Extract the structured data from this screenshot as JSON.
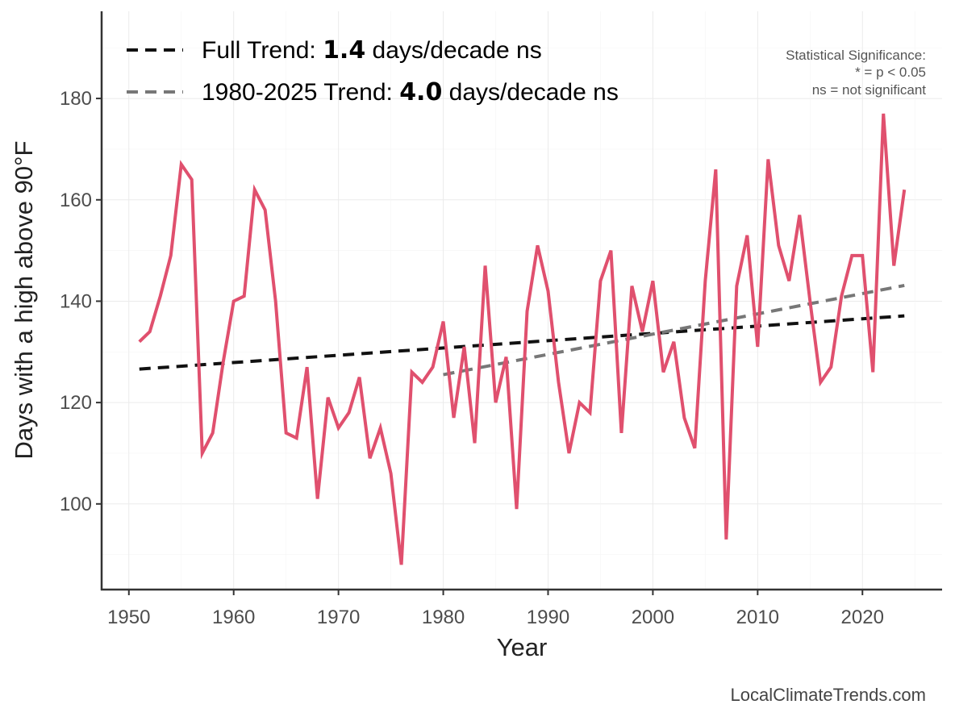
{
  "chart_data": {
    "type": "line",
    "title": "",
    "xlabel": "Year",
    "ylabel": "Days with a high above 90°F",
    "xlim": [
      1947.4,
      2027.6
    ],
    "ylim": [
      83.1,
      197.2
    ],
    "xticks": [
      1950,
      1960,
      1970,
      1980,
      1990,
      2000,
      2010,
      2020
    ],
    "yticks": [
      100,
      120,
      140,
      160,
      180
    ],
    "grid": true,
    "series": [
      {
        "name": "Days above 90°F",
        "color": "#e0506e",
        "x": [
          1951,
          1952,
          1953,
          1954,
          1955,
          1956,
          1957,
          1958,
          1959,
          1960,
          1961,
          1962,
          1963,
          1964,
          1965,
          1966,
          1967,
          1968,
          1969,
          1970,
          1971,
          1972,
          1973,
          1974,
          1975,
          1976,
          1977,
          1978,
          1979,
          1980,
          1981,
          1982,
          1983,
          1984,
          1985,
          1986,
          1987,
          1988,
          1989,
          1990,
          1991,
          1992,
          1993,
          1994,
          1995,
          1996,
          1997,
          1998,
          1999,
          2000,
          2001,
          2002,
          2003,
          2004,
          2005,
          2006,
          2007,
          2008,
          2009,
          2010,
          2011,
          2012,
          2013,
          2014,
          2015,
          2016,
          2017,
          2018,
          2019,
          2020,
          2021,
          2022,
          2023,
          2024
        ],
        "values": [
          132,
          134,
          141,
          149,
          167,
          164,
          110,
          114,
          128,
          140,
          141,
          162,
          158,
          140,
          114,
          113,
          127,
          101,
          121,
          115,
          118,
          125,
          109,
          115,
          106,
          88,
          126,
          124,
          127,
          136,
          117,
          131,
          112,
          147,
          120,
          129,
          99,
          138,
          151,
          142,
          124,
          110,
          120,
          118,
          144,
          150,
          114,
          143,
          134,
          144,
          126,
          132,
          117,
          111,
          144,
          166,
          93,
          143,
          153,
          131,
          168,
          151,
          144,
          157,
          140,
          124,
          127,
          141,
          149,
          149,
          126,
          177,
          147,
          162
        ]
      }
    ],
    "trends": [
      {
        "name": "Full Trend",
        "color": "#111111",
        "x": [
          1951,
          2024
        ],
        "values": [
          126.6,
          137.1
        ]
      },
      {
        "name": "1980-2025 Trend",
        "color": "#777777",
        "x": [
          1980,
          2024
        ],
        "values": [
          125.5,
          143.1
        ]
      }
    ],
    "legend": {
      "placement": "top-left",
      "entries": [
        {
          "prefix": "Full Trend: ",
          "value": "1.4",
          "suffix": " days/decade ns"
        },
        {
          "prefix": "1980-2025 Trend: ",
          "value": "4.0",
          "suffix": " days/decade ns"
        }
      ]
    },
    "annotations": {
      "significance_title": "Statistical Significance:",
      "significance_line1": "* = p < 0.05",
      "significance_line2": "ns = not significant",
      "source": "LocalClimateTrends.com"
    }
  }
}
